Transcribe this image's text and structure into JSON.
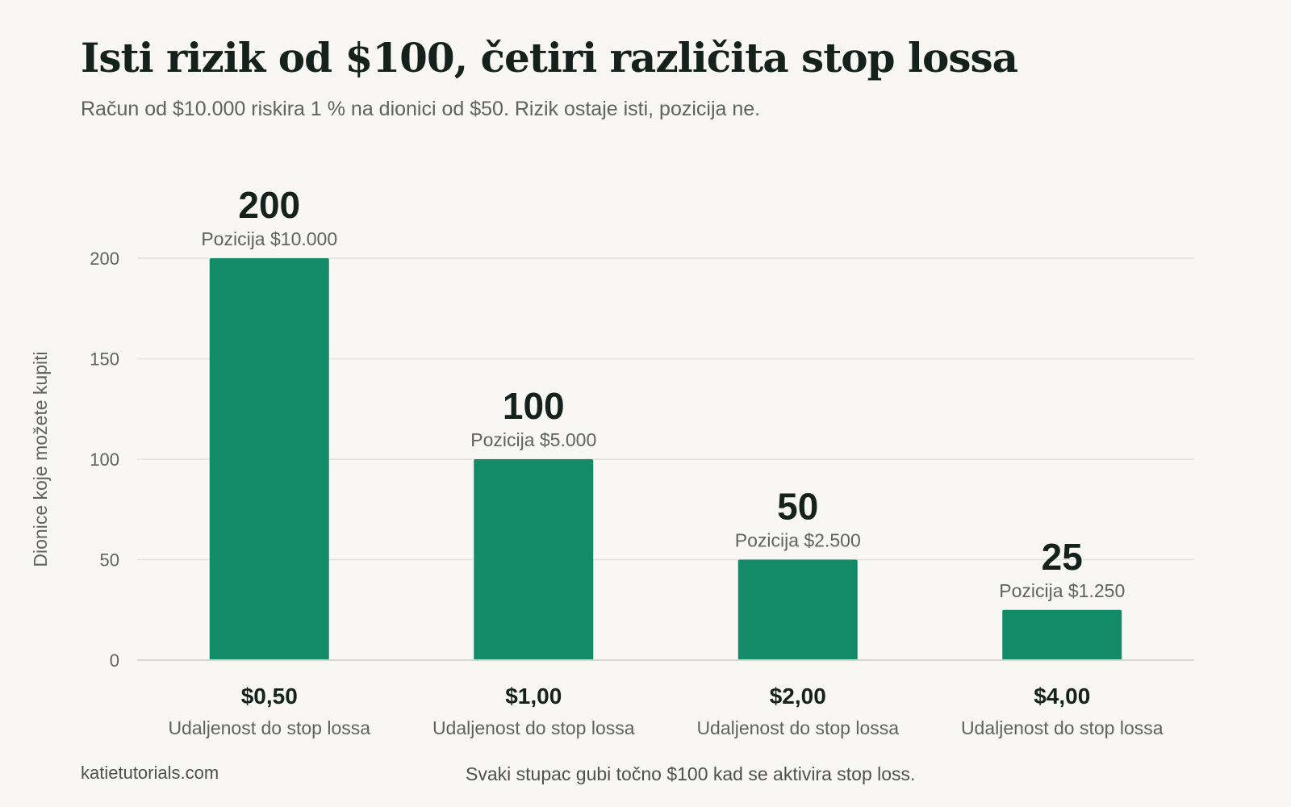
{
  "title": "Isti rizik od $100, četiri različita stop lossa",
  "subtitle": "Račun od $10.000 riskira 1 % na dionici od $50. Rizik ostaje isti, pozicija ne.",
  "footer": {
    "source": "katietutorials.com",
    "note": "Svaki stupac gubi točno $100 kad se aktivira stop loss."
  },
  "colors": {
    "bar": "#138a68",
    "grid": "#e3e2dd",
    "text_dark": "#15211c",
    "text_muted": "#5d6360"
  },
  "chart_data": {
    "type": "bar",
    "ylabel": "Dionice koje možete kupiti",
    "ylim": [
      0,
      200
    ],
    "yticks": [
      0,
      50,
      100,
      150,
      200
    ],
    "grid": true,
    "categories": [
      "$0,50",
      "$1,00",
      "$2,00",
      "$4,00"
    ],
    "category_sublabels": [
      "Udaljenost do stop lossa",
      "Udaljenost do stop lossa",
      "Udaljenost do stop lossa",
      "Udaljenost do stop lossa"
    ],
    "values": [
      200,
      100,
      50,
      25
    ],
    "value_labels": [
      "200",
      "100",
      "50",
      "25"
    ],
    "position_labels": [
      "Pozicija $10.000",
      "Pozicija $5.000",
      "Pozicija $2.500",
      "Pozicija $1.250"
    ]
  }
}
